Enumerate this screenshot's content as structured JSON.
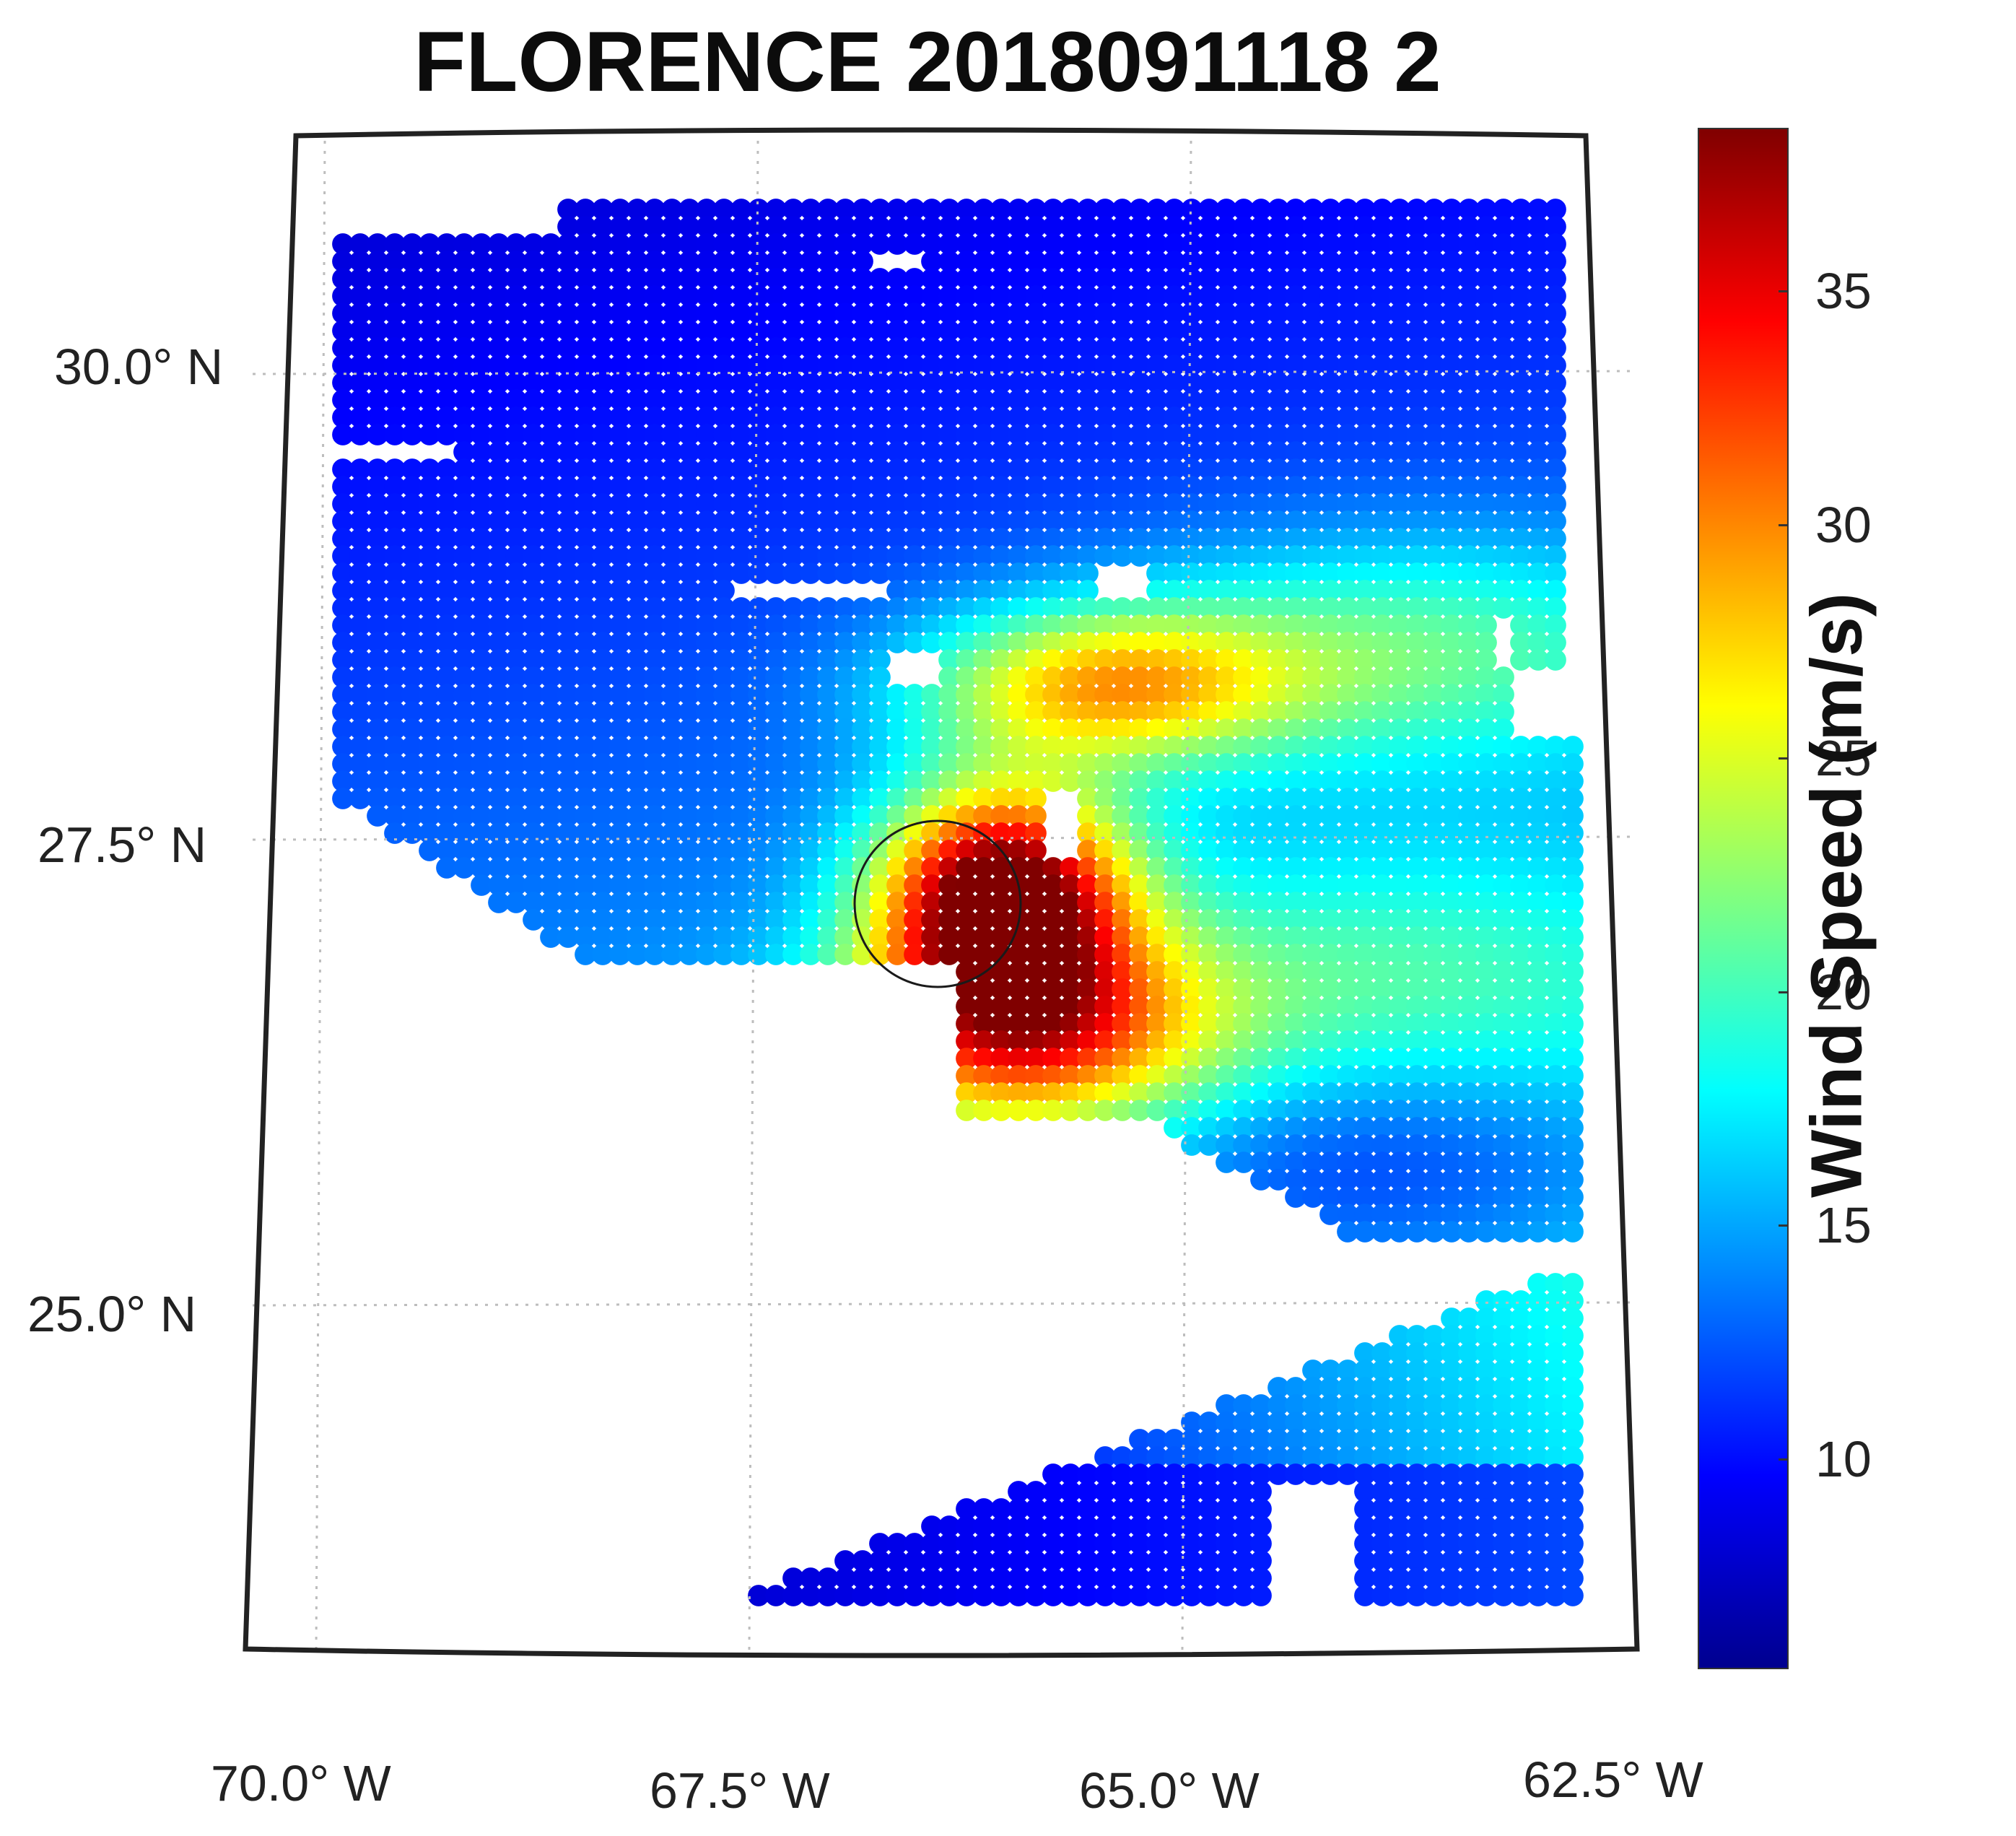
{
  "title": "FLORENCE 2018091118 2",
  "map": {
    "lat_labels": [
      "30.0° N",
      "27.5° N",
      "25.0° N"
    ],
    "lon_labels": [
      "70.0° W",
      "67.5° W",
      "65.0° W",
      "62.5° W"
    ],
    "lat_range": [
      23.6,
      31.5
    ],
    "lon_range": [
      -70.0,
      -62.5
    ],
    "storm_center": {
      "lon": -66.55,
      "lat": 27.15
    },
    "grid": true
  },
  "colorbar": {
    "label": "Wind Speed (m/s)",
    "ticks": [
      "10",
      "15",
      "20",
      "25",
      "30",
      "35"
    ],
    "tick_values": [
      10,
      15,
      20,
      25,
      30,
      35
    ],
    "range": [
      5.5,
      38.5
    ],
    "colormap": "jet",
    "colors": [
      "#00008f",
      "#0000ff",
      "#0080ff",
      "#00ffff",
      "#80ff80",
      "#ffff00",
      "#ff8000",
      "#ff0000",
      "#800000"
    ]
  }
}
